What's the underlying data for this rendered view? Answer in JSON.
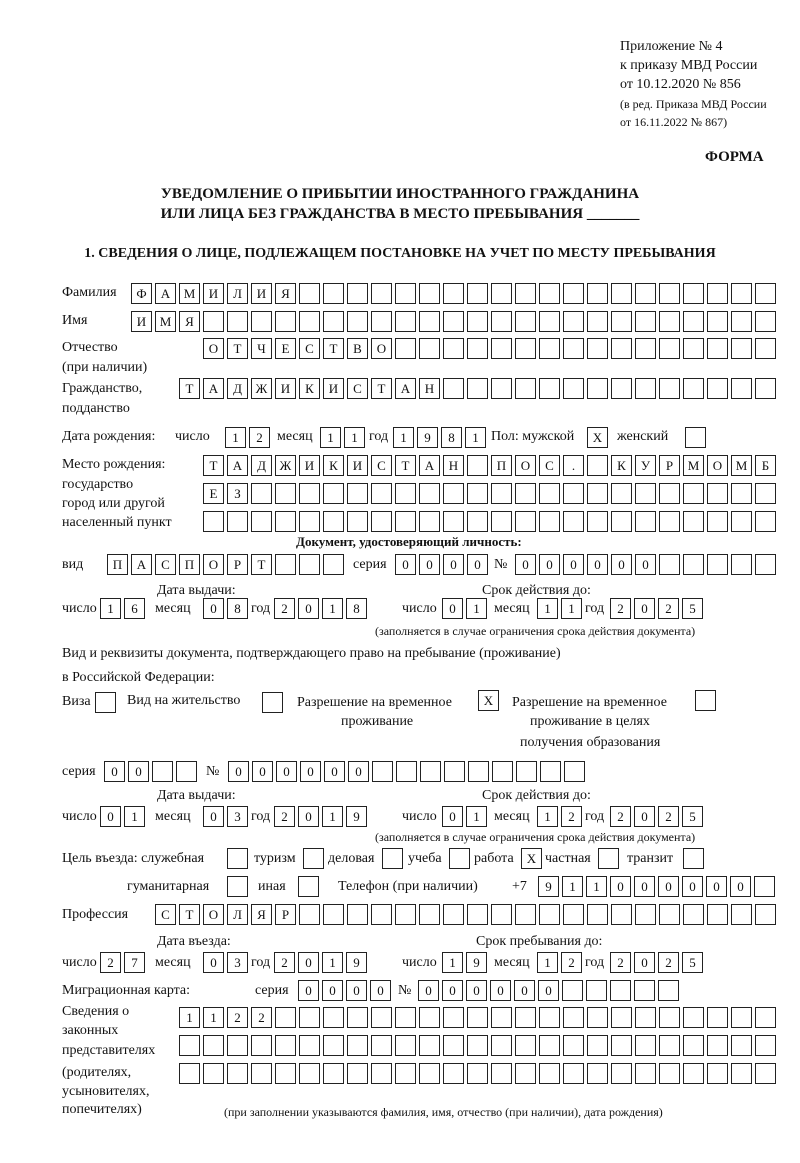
{
  "header": {
    "appendix": "Приложение № 4",
    "order": "к приказу МВД России",
    "order_date": "от 10.12.2020 № 856",
    "revision_1": "(в ред. Приказа МВД России",
    "revision_2": "от 16.11.2022 № 867)",
    "form_label": "ФОРМА"
  },
  "title": {
    "line1": "УВЕДОМЛЕНИЕ О ПРИБЫТИИ ИНОСТРАННОГО ГРАЖДАНИНА",
    "line2": "ИЛИ ЛИЦА БЕЗ ГРАЖДАНСТВА В МЕСТО ПРЕБЫВАНИЯ _______"
  },
  "section1": {
    "heading": "1. СВЕДЕНИЯ О ЛИЦЕ, ПОДЛЕЖАЩЕМ ПОСТАНОВКЕ НА УЧЕТ ПО МЕСТУ ПРЕБЫВАНИЯ",
    "surname": {
      "label": "Фамилия",
      "cells": [
        "Ф",
        "А",
        "М",
        "И",
        "Л",
        "И",
        "Я",
        "",
        "",
        "",
        "",
        "",
        "",
        "",
        "",
        "",
        "",
        "",
        "",
        "",
        "",
        "",
        "",
        "",
        "",
        "",
        ""
      ]
    },
    "name": {
      "label": "Имя",
      "cells": [
        "И",
        "М",
        "Я",
        "",
        "",
        "",
        "",
        "",
        "",
        "",
        "",
        "",
        "",
        "",
        "",
        "",
        "",
        "",
        "",
        "",
        "",
        "",
        "",
        "",
        "",
        "",
        ""
      ]
    },
    "patronymic": {
      "label1": "Отчество",
      "label2": "(при наличии)",
      "cells": [
        "О",
        "Т",
        "Ч",
        "Е",
        "С",
        "Т",
        "В",
        "О",
        "",
        "",
        "",
        "",
        "",
        "",
        "",
        "",
        "",
        "",
        "",
        "",
        "",
        "",
        "",
        ""
      ]
    },
    "citizenship": {
      "label1": "Гражданство,",
      "label2": "подданство",
      "cells": [
        "Т",
        "А",
        "Д",
        "Ж",
        "И",
        "К",
        "И",
        "С",
        "Т",
        "А",
        "Н",
        "",
        "",
        "",
        "",
        "",
        "",
        "",
        "",
        "",
        "",
        "",
        "",
        "",
        ""
      ]
    },
    "birth_date": {
      "label": "Дата рождения:",
      "day_label": "число",
      "month_label": "месяц",
      "year_label": "год",
      "day": [
        "1",
        "2"
      ],
      "month": [
        "1",
        "1"
      ],
      "year": [
        "1",
        "9",
        "8",
        "1"
      ],
      "sex_label": "Пол: мужской",
      "male": [
        "X"
      ],
      "female_label": "женский",
      "female": [
        ""
      ]
    },
    "birth_place": {
      "label1": "Место рождения:",
      "label2": "государство",
      "label3": "город или другой",
      "label4": "населенный пункт",
      "row1": [
        "Т",
        "А",
        "Д",
        "Ж",
        "И",
        "К",
        "И",
        "С",
        "Т",
        "А",
        "Н",
        "",
        "П",
        "О",
        "С",
        ".",
        "",
        "К",
        "У",
        "Р",
        "М",
        "О",
        "М",
        "Б"
      ],
      "row2": [
        "Е",
        "З",
        "",
        "",
        "",
        "",
        "",
        "",
        "",
        "",
        "",
        "",
        "",
        "",
        "",
        "",
        "",
        "",
        "",
        "",
        "",
        "",
        "",
        ""
      ],
      "row3": [
        "",
        "",
        "",
        "",
        "",
        "",
        "",
        "",
        "",
        "",
        "",
        "",
        "",
        "",
        "",
        "",
        "",
        "",
        "",
        "",
        "",
        "",
        "",
        ""
      ]
    },
    "identity_doc": {
      "heading": "Документ, удостоверяющий личность:",
      "type_label": "вид",
      "type": [
        "П",
        "А",
        "С",
        "П",
        "О",
        "Р",
        "Т",
        "",
        "",
        ""
      ],
      "series_label": "серия",
      "series": [
        "0",
        "0",
        "0",
        "0"
      ],
      "number_label": "№",
      "number": [
        "0",
        "0",
        "0",
        "0",
        "0",
        "0",
        "",
        "",
        "",
        "",
        ""
      ],
      "issue_label": "Дата выдачи:",
      "valid_label": "Срок действия до:",
      "day_label": "число",
      "month_label": "месяц",
      "year_label": "год",
      "issue_day": [
        "1",
        "6"
      ],
      "issue_month": [
        "0",
        "8"
      ],
      "issue_year": [
        "2",
        "0",
        "1",
        "8"
      ],
      "valid_day": [
        "0",
        "1"
      ],
      "valid_month": [
        "1",
        "1"
      ],
      "valid_year": [
        "2",
        "0",
        "2",
        "5"
      ],
      "note": "(заполняется в случае ограничения срока действия документа)"
    },
    "stay_doc": {
      "label1": "Вид и реквизиты документа, подтверждающего право на пребывание (проживание)",
      "label2": "в Российской Федерации:",
      "visa_label": "Виза",
      "visa": [
        ""
      ],
      "residence_label": "Вид на жительство",
      "residence": [
        ""
      ],
      "temp_label1": "Разрешение на временное",
      "temp_label2": "проживание",
      "temp": [
        "X"
      ],
      "edu_label1": "Разрешение на временное",
      "edu_label2": "проживание в целях",
      "edu_label3": "получения образования",
      "edu": [
        ""
      ],
      "series_label": "серия",
      "series": [
        "0",
        "0",
        "",
        ""
      ],
      "number_label": "№",
      "number": [
        "0",
        "0",
        "0",
        "0",
        "0",
        "0",
        "",
        "",
        "",
        "",
        "",
        "",
        "",
        "",
        ""
      ],
      "issue_label": "Дата выдачи:",
      "valid_label": "Срок действия до:",
      "day_label": "число",
      "month_label": "месяц",
      "year_label": "год",
      "issue_day": [
        "0",
        "1"
      ],
      "issue_month": [
        "0",
        "3"
      ],
      "issue_year": [
        "2",
        "0",
        "1",
        "9"
      ],
      "valid_day": [
        "0",
        "1"
      ],
      "valid_month": [
        "1",
        "2"
      ],
      "valid_year": [
        "2",
        "0",
        "2",
        "5"
      ],
      "note": "(заполняется в случае ограничения срока действия документа)"
    },
    "purpose": {
      "label": "Цель въезда: служебная",
      "service": [
        ""
      ],
      "tourism_label": "туризм",
      "tourism": [
        ""
      ],
      "business_label": "деловая",
      "business": [
        ""
      ],
      "study_label": "учеба",
      "study": [
        ""
      ],
      "work_label": "работа",
      "work": [
        "X"
      ],
      "private_label": "частная",
      "private": [
        ""
      ],
      "transit_label": "транзит",
      "transit": [
        ""
      ],
      "humanitarian_label": "гуманитарная",
      "humanitarian": [
        ""
      ],
      "other_label": "иная",
      "other": [
        ""
      ]
    },
    "phone": {
      "label": "Телефон (при наличии)",
      "prefix": "+7",
      "cells": [
        "9",
        "1",
        "1",
        "0",
        "0",
        "0",
        "0",
        "0",
        "0",
        ""
      ]
    },
    "profession": {
      "label": "Профессия",
      "cells": [
        "С",
        "Т",
        "О",
        "Л",
        "Я",
        "Р",
        "",
        "",
        "",
        "",
        "",
        "",
        "",
        "",
        "",
        "",
        "",
        "",
        "",
        "",
        "",
        "",
        "",
        "",
        "",
        ""
      ]
    },
    "entry": {
      "entry_label": "Дата въезда:",
      "stay_label": "Срок пребывания до:",
      "day_label": "число",
      "month_label": "месяц",
      "year_label": "год",
      "entry_day": [
        "2",
        "7"
      ],
      "entry_month": [
        "0",
        "3"
      ],
      "entry_year": [
        "2",
        "0",
        "1",
        "9"
      ],
      "stay_day": [
        "1",
        "9"
      ],
      "stay_month": [
        "1",
        "2"
      ],
      "stay_year": [
        "2",
        "0",
        "2",
        "5"
      ]
    },
    "migration_card": {
      "label": "Миграционная карта:",
      "series_label": "серия",
      "series": [
        "0",
        "0",
        "0",
        "0"
      ],
      "number_label": "№",
      "number": [
        "0",
        "0",
        "0",
        "0",
        "0",
        "0",
        "",
        "",
        "",
        "",
        ""
      ]
    },
    "representatives": {
      "label1": "Сведения о",
      "label2": "законных",
      "label3": "представителях",
      "label4": "(родителях,",
      "label5": "усыновителях,",
      "label6": "попечителях)",
      "row1": [
        "1",
        "1",
        "2",
        "2",
        "",
        "",
        "",
        "",
        "",
        "",
        "",
        "",
        "",
        "",
        "",
        "",
        "",
        "",
        "",
        "",
        "",
        "",
        "",
        "",
        ""
      ],
      "row2": [
        "",
        "",
        "",
        "",
        "",
        "",
        "",
        "",
        "",
        "",
        "",
        "",
        "",
        "",
        "",
        "",
        "",
        "",
        "",
        "",
        "",
        "",
        "",
        "",
        ""
      ],
      "row3": [
        "",
        "",
        "",
        "",
        "",
        "",
        "",
        "",
        "",
        "",
        "",
        "",
        "",
        "",
        "",
        "",
        "",
        "",
        "",
        "",
        "",
        "",
        "",
        "",
        ""
      ],
      "note": "(при заполнении указываются фамилия, имя, отчество (при наличии), дата рождения)"
    }
  }
}
